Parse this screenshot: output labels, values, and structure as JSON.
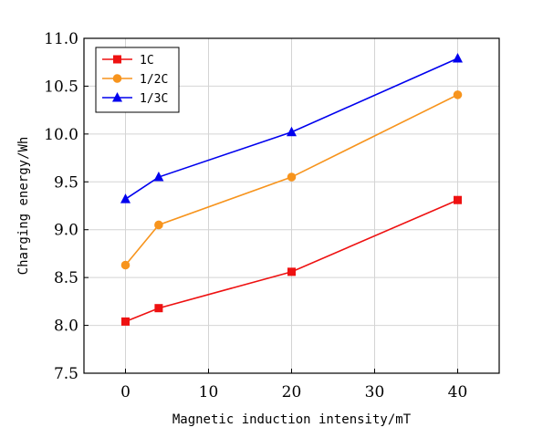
{
  "chart_data": {
    "type": "line",
    "xlabel": "Magnetic induction intensity/mT",
    "ylabel": "Charging energy/Wh",
    "xlim": [
      -5,
      45
    ],
    "ylim": [
      7.5,
      11.0
    ],
    "xticks": [
      0,
      10,
      20,
      30,
      40
    ],
    "yticks": [
      7.5,
      8.0,
      8.5,
      9.0,
      9.5,
      10.0,
      10.5,
      11.0
    ],
    "xtick_labels": [
      "0",
      "10",
      "20",
      "30",
      "40"
    ],
    "ytick_labels": [
      "7.5",
      "8.0",
      "8.5",
      "9.0",
      "9.5",
      "10.0",
      "10.5",
      "11.0"
    ],
    "grid": true,
    "legend_position": "top-left",
    "x": [
      0,
      4,
      20,
      40
    ],
    "series": [
      {
        "name": "1C",
        "values": [
          8.04,
          8.18,
          8.56,
          9.31
        ],
        "color": "#ee1111",
        "marker": "square"
      },
      {
        "name": "1/2C",
        "values": [
          8.63,
          9.05,
          9.55,
          10.41
        ],
        "color": "#f7941d",
        "marker": "circle"
      },
      {
        "name": "1/3C",
        "values": [
          9.32,
          9.55,
          10.02,
          10.79
        ],
        "color": "#0000ee",
        "marker": "triangle"
      }
    ]
  }
}
